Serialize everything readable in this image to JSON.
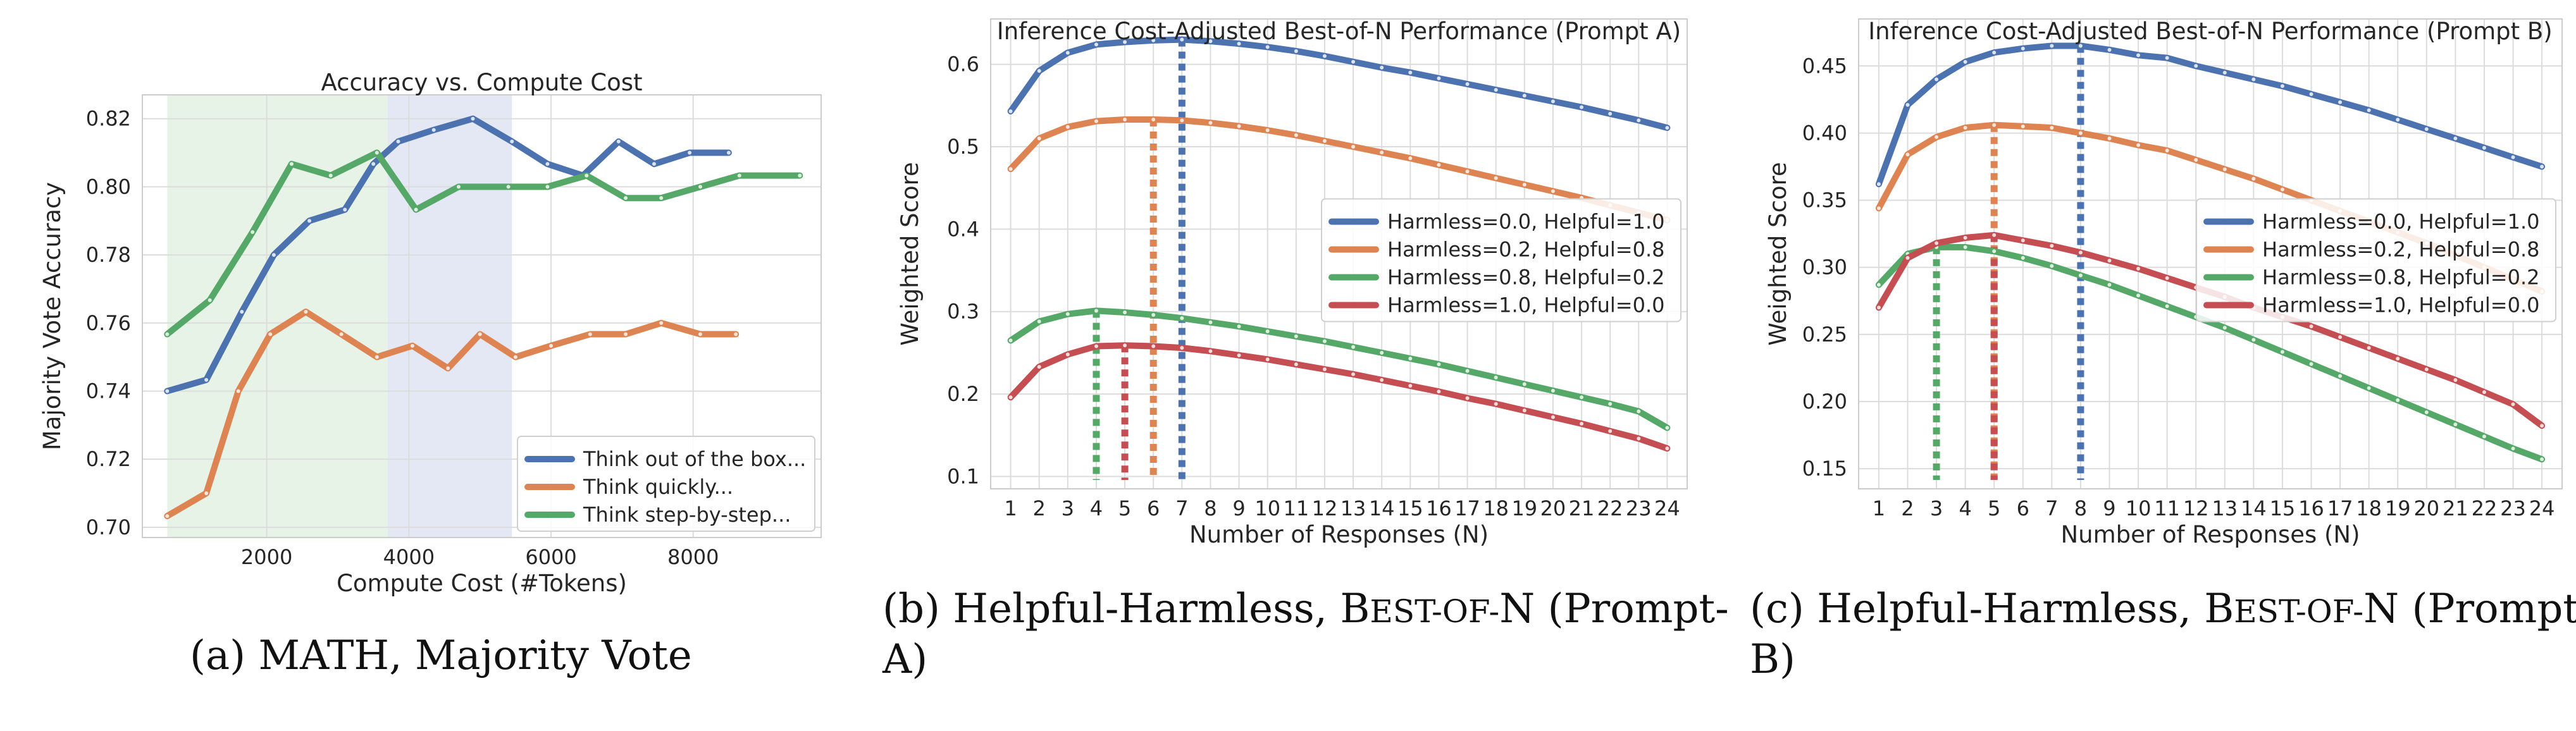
{
  "colors": {
    "blue": "#4c72b0",
    "orange": "#dd8452",
    "green": "#55a868",
    "red": "#c44e52",
    "region_green": "#e8f3e8",
    "region_blue": "#e4e8f4",
    "grid": "#dcdcdc"
  },
  "captions": [
    {
      "parts": [
        {
          "text": "(a) MATH, Majority Vote",
          "sc": false
        }
      ]
    },
    {
      "parts": [
        {
          "text": "(b) Helpful-Harmless, B",
          "sc": false
        },
        {
          "text": "EST-OF-",
          "sc": true
        },
        {
          "text": "N (Prompt-",
          "sc": false
        }
      ],
      "line2": "A)"
    },
    {
      "parts": [
        {
          "text": "(c) Helpful-Harmless, B",
          "sc": false
        },
        {
          "text": "EST-OF-",
          "sc": true
        },
        {
          "text": "N (Prompt-",
          "sc": false
        }
      ],
      "line2": "B)"
    }
  ],
  "chart_data": [
    {
      "type": "line",
      "title": "Accuracy vs. Compute Cost",
      "xlabel": "Compute Cost (#Tokens)",
      "ylabel": "Majority Vote Accuracy",
      "xlim": [
        250,
        9800
      ],
      "ylim": [
        0.697,
        0.827
      ],
      "xticks": [
        2000,
        4000,
        6000,
        8000
      ],
      "yticks": [
        0.7,
        0.72,
        0.74,
        0.76,
        0.78,
        0.8,
        0.82
      ],
      "ytick_labels": [
        "0.70",
        "0.72",
        "0.74",
        "0.76",
        "0.78",
        "0.80",
        "0.82"
      ],
      "grid": true,
      "legend_position": "lower-right",
      "shaded_regions": [
        {
          "x": [
            600,
            3700
          ],
          "color": "region_green"
        },
        {
          "x": [
            3700,
            5450
          ],
          "color": "region_blue"
        }
      ],
      "series": [
        {
          "name": "Think out of the box...",
          "color": "blue",
          "x": [
            600,
            1150,
            1650,
            2100,
            2600,
            3100,
            3500,
            3850,
            4350,
            4900,
            5450,
            5950,
            6450,
            6950,
            7450,
            7950,
            8500
          ],
          "y": [
            0.74,
            0.7433,
            0.7633,
            0.78,
            0.79,
            0.7933,
            0.8067,
            0.8133,
            0.8167,
            0.82,
            0.8133,
            0.8067,
            0.8033,
            0.8133,
            0.8067,
            0.81,
            0.81
          ]
        },
        {
          "name": "Think quickly...",
          "color": "orange",
          "x": [
            600,
            1150,
            1600,
            2050,
            2550,
            3050,
            3550,
            4050,
            4550,
            5000,
            5500,
            6000,
            6550,
            7050,
            7550,
            8100,
            8600
          ],
          "y": [
            0.7033,
            0.71,
            0.74,
            0.7567,
            0.7633,
            0.7567,
            0.75,
            0.7533,
            0.7467,
            0.7567,
            0.75,
            0.7533,
            0.7567,
            0.7567,
            0.76,
            0.7567,
            0.7567
          ]
        },
        {
          "name": "Think step-by-step...",
          "color": "green",
          "x": [
            600,
            1200,
            1800,
            2350,
            2900,
            3550,
            4100,
            4700,
            5400,
            5950,
            6500,
            7050,
            7550,
            8100,
            8650,
            9500
          ],
          "y": [
            0.7567,
            0.7667,
            0.7867,
            0.8067,
            0.8033,
            0.81,
            0.7933,
            0.8,
            0.8,
            0.8,
            0.8033,
            0.7967,
            0.7967,
            0.8,
            0.8033,
            0.8033
          ]
        }
      ]
    },
    {
      "type": "line",
      "title": "Inference Cost-Adjusted Best-of-N Performance (Prompt A)",
      "xlabel": "Number of Responses (N)",
      "ylabel": "Weighted Score",
      "x": [
        1,
        2,
        3,
        4,
        5,
        6,
        7,
        8,
        9,
        10,
        11,
        12,
        13,
        14,
        15,
        16,
        17,
        18,
        19,
        20,
        21,
        22,
        23,
        24
      ],
      "xlim": [
        0.3,
        24.7
      ],
      "ylim": [
        0.085,
        0.655
      ],
      "yticks": [
        0.1,
        0.2,
        0.3,
        0.4,
        0.5,
        0.6
      ],
      "ytick_labels": [
        "0.1",
        "0.2",
        "0.3",
        "0.4",
        "0.5",
        "0.6"
      ],
      "grid": true,
      "legend_position": "center-right",
      "series": [
        {
          "name": "Harmless=0.0, Helpful=1.0",
          "color": "blue",
          "peak_n": 7,
          "values": [
            0.543,
            0.592,
            0.614,
            0.624,
            0.627,
            0.629,
            0.63,
            0.628,
            0.625,
            0.621,
            0.616,
            0.61,
            0.603,
            0.596,
            0.59,
            0.583,
            0.576,
            0.569,
            0.562,
            0.555,
            0.548,
            0.54,
            0.532,
            0.523
          ]
        },
        {
          "name": "Harmless=0.2, Helpful=0.8",
          "color": "orange",
          "peak_n": 6,
          "values": [
            0.473,
            0.51,
            0.524,
            0.531,
            0.533,
            0.533,
            0.532,
            0.529,
            0.525,
            0.52,
            0.514,
            0.507,
            0.5,
            0.493,
            0.486,
            0.478,
            0.47,
            0.462,
            0.454,
            0.446,
            0.438,
            0.429,
            0.42,
            0.411
          ]
        },
        {
          "name": "Harmless=0.8, Helpful=0.2",
          "color": "green",
          "peak_n": 4,
          "values": [
            0.265,
            0.288,
            0.297,
            0.301,
            0.299,
            0.296,
            0.292,
            0.287,
            0.282,
            0.276,
            0.27,
            0.264,
            0.257,
            0.25,
            0.243,
            0.236,
            0.228,
            0.22,
            0.212,
            0.204,
            0.196,
            0.188,
            0.179,
            0.159
          ]
        },
        {
          "name": "Harmless=1.0, Helpful=0.0",
          "color": "red",
          "peak_n": 5,
          "values": [
            0.196,
            0.233,
            0.248,
            0.258,
            0.259,
            0.258,
            0.256,
            0.252,
            0.247,
            0.242,
            0.236,
            0.23,
            0.224,
            0.217,
            0.21,
            0.203,
            0.195,
            0.188,
            0.18,
            0.172,
            0.164,
            0.155,
            0.146,
            0.134
          ]
        }
      ]
    },
    {
      "type": "line",
      "title": "Inference Cost-Adjusted Best-of-N Performance (Prompt B)",
      "xlabel": "Number of Responses (N)",
      "ylabel": "Weighted Score",
      "x": [
        1,
        2,
        3,
        4,
        5,
        6,
        7,
        8,
        9,
        10,
        11,
        12,
        13,
        14,
        15,
        16,
        17,
        18,
        19,
        20,
        21,
        22,
        23,
        24
      ],
      "xlim": [
        0.3,
        24.7
      ],
      "ylim": [
        0.135,
        0.485
      ],
      "yticks": [
        0.15,
        0.2,
        0.25,
        0.3,
        0.35,
        0.4,
        0.45
      ],
      "ytick_labels": [
        "0.15",
        "0.20",
        "0.25",
        "0.30",
        "0.35",
        "0.40",
        "0.45"
      ],
      "grid": true,
      "legend_position": "center-right",
      "series": [
        {
          "name": "Harmless=0.0, Helpful=1.0",
          "color": "blue",
          "peak_n": 8,
          "values": [
            0.362,
            0.421,
            0.44,
            0.453,
            0.46,
            0.463,
            0.465,
            0.465,
            0.462,
            0.458,
            0.456,
            0.45,
            0.445,
            0.44,
            0.435,
            0.429,
            0.423,
            0.417,
            0.41,
            0.403,
            0.396,
            0.389,
            0.382,
            0.375
          ]
        },
        {
          "name": "Harmless=0.2, Helpful=0.8",
          "color": "orange",
          "peak_n": 5,
          "values": [
            0.344,
            0.384,
            0.397,
            0.404,
            0.406,
            0.405,
            0.404,
            0.4,
            0.396,
            0.391,
            0.387,
            0.38,
            0.373,
            0.366,
            0.358,
            0.35,
            0.342,
            0.334,
            0.326,
            0.318,
            0.309,
            0.3,
            0.291,
            0.282
          ]
        },
        {
          "name": "Harmless=0.8, Helpful=0.2",
          "color": "green",
          "peak_n": 3,
          "values": [
            0.287,
            0.31,
            0.315,
            0.315,
            0.312,
            0.307,
            0.301,
            0.294,
            0.287,
            0.279,
            0.271,
            0.263,
            0.255,
            0.246,
            0.237,
            0.228,
            0.219,
            0.21,
            0.201,
            0.192,
            0.183,
            0.174,
            0.165,
            0.157
          ]
        },
        {
          "name": "Harmless=1.0, Helpful=0.0",
          "color": "red",
          "peak_n": 5,
          "values": [
            0.27,
            0.307,
            0.318,
            0.322,
            0.324,
            0.32,
            0.316,
            0.311,
            0.305,
            0.299,
            0.292,
            0.285,
            0.278,
            0.27,
            0.263,
            0.256,
            0.248,
            0.24,
            0.232,
            0.224,
            0.216,
            0.207,
            0.198,
            0.182
          ]
        }
      ]
    }
  ]
}
